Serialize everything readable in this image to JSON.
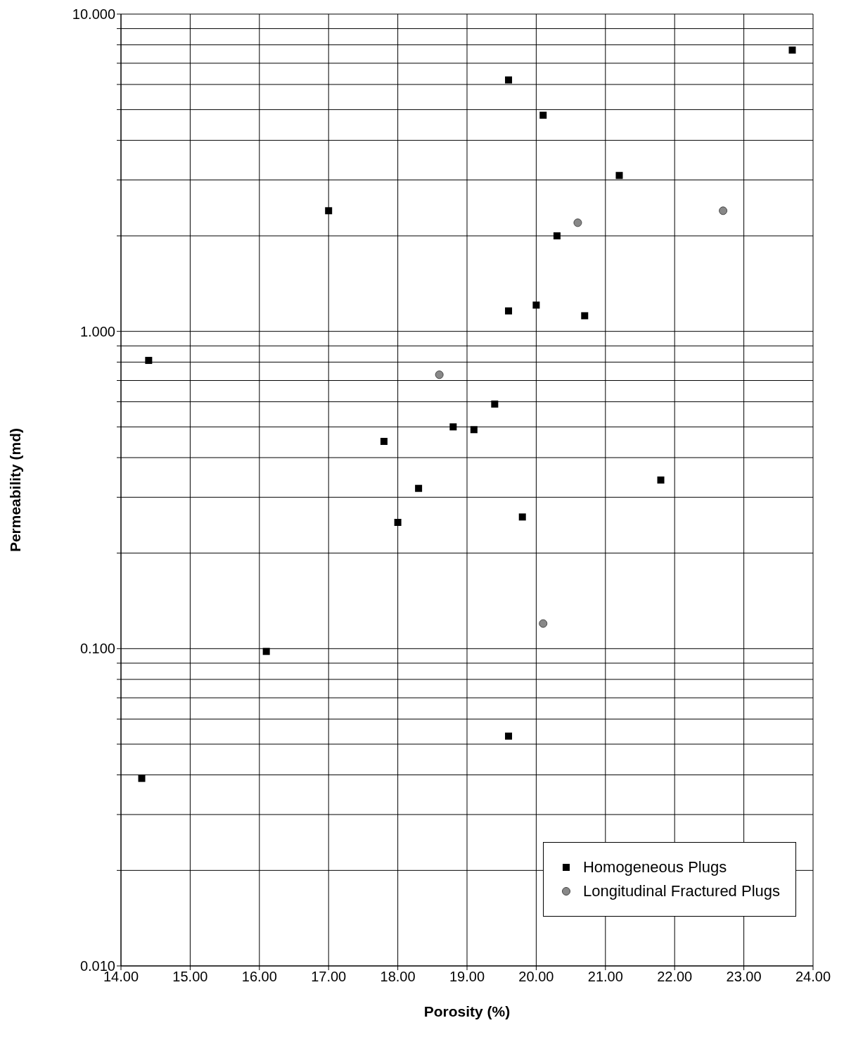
{
  "chart_data": {
    "type": "scatter",
    "xlabel": "Porosity (%)",
    "ylabel": "Permeability (md)",
    "log": "y",
    "grid": true,
    "legend": "bottom right",
    "xlim": [
      14,
      24
    ],
    "xticks": [
      {
        "value": 14,
        "label": "14.00"
      },
      {
        "value": 15,
        "label": "15.00"
      },
      {
        "value": 16,
        "label": "16.00"
      },
      {
        "value": 17,
        "label": "17.00"
      },
      {
        "value": 18,
        "label": "18.00"
      },
      {
        "value": 19,
        "label": "19.00"
      },
      {
        "value": 20,
        "label": "20.00"
      },
      {
        "value": 21,
        "label": "21.00"
      },
      {
        "value": 22,
        "label": "22.00"
      },
      {
        "value": 23,
        "label": "23.00"
      },
      {
        "value": 24,
        "label": "24.00"
      }
    ],
    "ylim": [
      0.01,
      10
    ],
    "yticks": [
      {
        "value": 0.01,
        "label": "0.010"
      },
      {
        "value": 0.02,
        "label": null
      },
      {
        "value": 0.03,
        "label": null
      },
      {
        "value": 0.04,
        "label": null
      },
      {
        "value": 0.05,
        "label": null
      },
      {
        "value": 0.06,
        "label": null
      },
      {
        "value": 0.07,
        "label": null
      },
      {
        "value": 0.08,
        "label": null
      },
      {
        "value": 0.09,
        "label": null
      },
      {
        "value": 0.1,
        "label": "0.100"
      },
      {
        "value": 0.2,
        "label": null
      },
      {
        "value": 0.3,
        "label": null
      },
      {
        "value": 0.4,
        "label": null
      },
      {
        "value": 0.5,
        "label": null
      },
      {
        "value": 0.6,
        "label": null
      },
      {
        "value": 0.7,
        "label": null
      },
      {
        "value": 0.8,
        "label": null
      },
      {
        "value": 0.9,
        "label": null
      },
      {
        "value": 1,
        "label": "1.000"
      },
      {
        "value": 2,
        "label": null
      },
      {
        "value": 3,
        "label": null
      },
      {
        "value": 4,
        "label": null
      },
      {
        "value": 5,
        "label": null
      },
      {
        "value": 6,
        "label": null
      },
      {
        "value": 7,
        "label": null
      },
      {
        "value": 8,
        "label": null
      },
      {
        "value": 9,
        "label": null
      },
      {
        "value": 10,
        "label": "10.000"
      }
    ],
    "series": [
      {
        "name": "Homogeneous Plugs",
        "color": "#000000",
        "marker": "square",
        "x": [
          23.7,
          19.6,
          20.1,
          21.2,
          17.0,
          20.3,
          19.6,
          20.0,
          20.7,
          14.4,
          19.4,
          18.8,
          19.1,
          17.8,
          18.3,
          18.0,
          19.8,
          21.8,
          16.1,
          19.6,
          14.3
        ],
        "values": [
          7.7,
          6.2,
          4.8,
          3.1,
          2.4,
          2.0,
          1.16,
          1.21,
          1.12,
          0.81,
          0.59,
          0.5,
          0.49,
          0.45,
          0.32,
          0.25,
          0.26,
          0.34,
          0.098,
          0.053,
          0.039
        ]
      },
      {
        "name": "Longitudinal Fractured Plugs",
        "color": "#888888",
        "marker": "circle",
        "x": [
          20.6,
          22.7,
          18.6,
          20.1
        ],
        "values": [
          2.2,
          2.4,
          0.73,
          0.12
        ]
      }
    ]
  }
}
